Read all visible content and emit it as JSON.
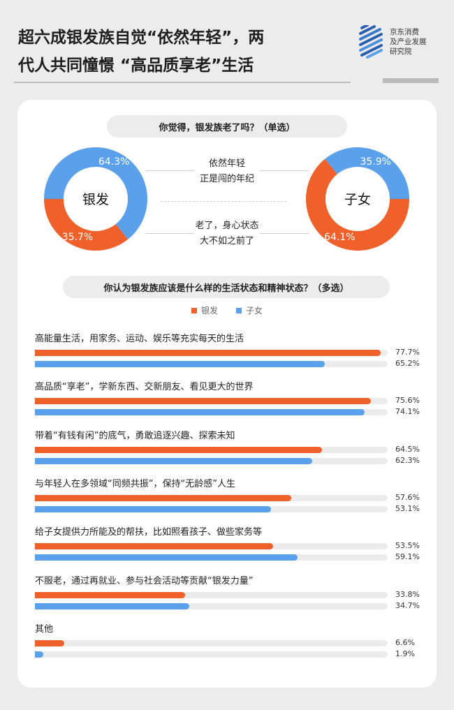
{
  "header": {
    "title_line1": "超六成银发族自觉“依然年轻”，两",
    "title_line2": "代人共同憧憬 “高品质享老”生活",
    "logo_lines": [
      "京东消费",
      "及产业发展",
      "研究院"
    ]
  },
  "colors": {
    "orange": "#f0602a",
    "blue": "#5ba0ea"
  },
  "q1": {
    "question": "你觉得，银发族老了吗？（单选）",
    "option_young": [
      "依然年轻",
      "正是闯的年纪"
    ],
    "option_old": [
      "老了，身心状态",
      "大不如之前了"
    ]
  },
  "chart_data": [
    {
      "type": "pie",
      "name": "银发",
      "slices": [
        {
          "label": "依然年轻",
          "value": 64.3,
          "display": "64.3%",
          "color": "#5ba0ea"
        },
        {
          "label": "老了",
          "value": 35.7,
          "display": "35.7%",
          "color": "#f0602a"
        }
      ]
    },
    {
      "type": "pie",
      "name": "子女",
      "slices": [
        {
          "label": "依然年轻",
          "value": 35.9,
          "display": "35.9%",
          "color": "#5ba0ea"
        },
        {
          "label": "老了",
          "value": 64.1,
          "display": "64.1%",
          "color": "#f0602a"
        }
      ]
    },
    {
      "type": "bar",
      "orientation": "horizontal",
      "title": "你认为银发族应该是什么样的生活状态和精神状态？（多选）",
      "legend": [
        "银发",
        "子女"
      ],
      "categories": [
        "高能量生活，用家务、运动、娱乐等充实每天的生活",
        "高品质“享老”，学新东西、交新朋友、看见更大的世界",
        "带着“有钱有闲”的底气，勇敢追逐兴趣、探索未知",
        "与年轻人在多领域“同频共振”，保持“无龄感”人生",
        "给子女提供力所能及的帮扶，比如照看孩子、做些家务等",
        "不服老，通过再就业、参与社会活动等贡献“银发力量”",
        "其他"
      ],
      "series": [
        {
          "name": "银发",
          "color": "#f0602a",
          "values": [
            77.7,
            75.6,
            64.5,
            57.6,
            53.5,
            33.8,
            6.6
          ],
          "labels": [
            "77.7%",
            "75.6%",
            "64.5%",
            "57.6%",
            "53.5%",
            "33.8%",
            "6.6%"
          ]
        },
        {
          "name": "子女",
          "color": "#5ba0ea",
          "values": [
            65.2,
            74.1,
            62.3,
            53.1,
            59.1,
            34.7,
            1.9
          ],
          "labels": [
            "65.2%",
            "74.1%",
            "62.3%",
            "53.1%",
            "59.1%",
            "34.7%",
            "1.9%"
          ]
        }
      ]
    }
  ]
}
